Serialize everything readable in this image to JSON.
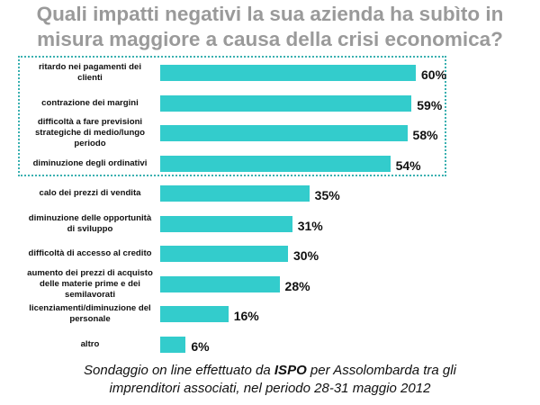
{
  "title_lines": [
    "Quali impatti negativi la sua azienda ha subìto in",
    "misura maggiore a causa della crisi economica?"
  ],
  "footer": {
    "pre": "Sondaggio on line effettuato da ",
    "brand": "ISPO",
    "post": " per Assolombarda tra gli",
    "line2": "imprenditori associati, nel periodo 28-31 maggio 2012"
  },
  "chart_data": {
    "type": "bar",
    "orientation": "horizontal",
    "title": "Quali impatti negativi la sua azienda ha subìto in misura maggiore a causa della crisi economica?",
    "categories": [
      "ritardo nei pagamenti dei clienti",
      "contrazione dei margini",
      "difficoltà a fare previsioni strategiche di medio/lungo periodo",
      "diminuzione degli ordinativi",
      "calo dei prezzi di vendita",
      "diminuzione delle opportunità di sviluppo",
      "difficoltà di accesso al credito",
      "aumento dei prezzi di acquisto delle materie prime e dei semilavorati",
      "licenziamenti/diminuzione del personale",
      "altro"
    ],
    "values": [
      60,
      59,
      58,
      54,
      35,
      31,
      30,
      28,
      16,
      6
    ],
    "labels": [
      "60%",
      "59%",
      "58%",
      "54%",
      "35%",
      "31%",
      "30%",
      "28%",
      "16%",
      "6%"
    ],
    "unit": "%",
    "xlim": [
      0,
      60
    ],
    "grid": false,
    "bar_color": "#33cccc",
    "highlighted_top": 4
  }
}
